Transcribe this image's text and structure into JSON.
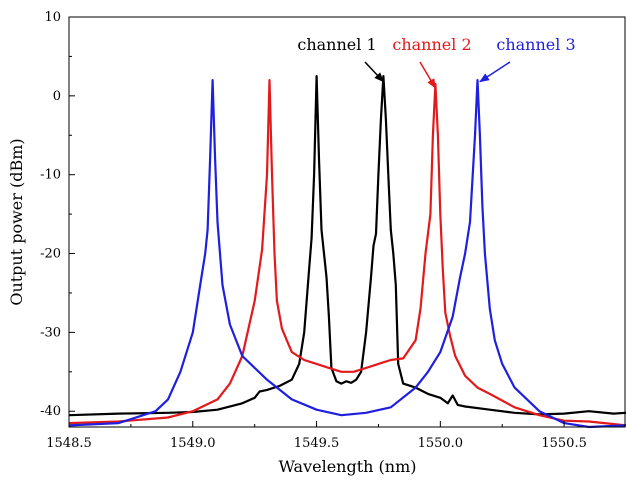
{
  "chart_data": {
    "type": "line",
    "title": "",
    "xlabel": "Wavelength (nm)",
    "ylabel": "Output power (dBm)",
    "xlim": [
      1548.5,
      1550.75
    ],
    "ylim": [
      -42,
      10
    ],
    "x_ticks": [
      1548.5,
      1549.0,
      1549.5,
      1550.0,
      1550.5
    ],
    "x_tick_labels": [
      "1548.5",
      "1549.0",
      "1549.5",
      "1550.0",
      "1550.5"
    ],
    "y_ticks": [
      -40,
      -30,
      -20,
      -10,
      0,
      10
    ],
    "y_tick_labels": [
      "-40",
      "-30",
      "-20",
      "-10",
      "0",
      "10"
    ],
    "grid": false,
    "legend": "none",
    "series": [
      {
        "name": "channel 1",
        "color": "#000000",
        "x": [
          1548.5,
          1548.7,
          1548.9,
          1549.0,
          1549.1,
          1549.2,
          1549.25,
          1549.27,
          1549.3,
          1549.35,
          1549.4,
          1549.43,
          1549.45,
          1549.47,
          1549.48,
          1549.49,
          1549.5,
          1549.51,
          1549.52,
          1549.53,
          1549.54,
          1549.55,
          1549.56,
          1549.58,
          1549.6,
          1549.62,
          1549.64,
          1549.66,
          1549.68,
          1549.7,
          1549.72,
          1549.73,
          1549.74,
          1549.75,
          1549.76,
          1549.77,
          1549.78,
          1549.79,
          1549.8,
          1549.81,
          1549.82,
          1549.83,
          1549.85,
          1549.9,
          1549.95,
          1550.0,
          1550.03,
          1550.05,
          1550.07,
          1550.1,
          1550.2,
          1550.3,
          1550.4,
          1550.5,
          1550.6,
          1550.7,
          1550.75
        ],
        "y": [
          -40.5,
          -40.3,
          -40.2,
          -40.1,
          -39.8,
          -39.0,
          -38.3,
          -37.5,
          -37.3,
          -36.8,
          -36.0,
          -34.0,
          -30.0,
          -22.0,
          -18.0,
          -10.0,
          2.5,
          -8.0,
          -17.0,
          -20.0,
          -23.0,
          -28.0,
          -34.5,
          -36.2,
          -36.5,
          -36.2,
          -36.4,
          -36.0,
          -35.0,
          -30.0,
          -23.0,
          -19.0,
          -17.5,
          -10.0,
          -3.0,
          2.5,
          -3.0,
          -10.0,
          -17.0,
          -20.0,
          -24.0,
          -34.0,
          -36.5,
          -37.0,
          -37.8,
          -38.3,
          -39.0,
          -38.0,
          -39.2,
          -39.4,
          -39.8,
          -40.2,
          -40.4,
          -40.3,
          -40.0,
          -40.3,
          -40.2
        ]
      },
      {
        "name": "channel 2",
        "color": "#e31a1c",
        "x": [
          1548.5,
          1548.7,
          1548.9,
          1549.0,
          1549.1,
          1549.15,
          1549.2,
          1549.25,
          1549.28,
          1549.3,
          1549.31,
          1549.32,
          1549.33,
          1549.34,
          1549.36,
          1549.38,
          1549.4,
          1549.45,
          1549.5,
          1549.55,
          1549.6,
          1549.65,
          1549.7,
          1549.75,
          1549.8,
          1549.85,
          1549.9,
          1549.92,
          1549.94,
          1549.96,
          1549.97,
          1549.98,
          1549.99,
          1550.0,
          1550.01,
          1550.02,
          1550.04,
          1550.06,
          1550.1,
          1550.15,
          1550.2,
          1550.3,
          1550.4,
          1550.5,
          1550.6,
          1550.75
        ],
        "y": [
          -41.5,
          -41.3,
          -40.8,
          -40.0,
          -38.5,
          -36.5,
          -33.0,
          -26.0,
          -19.5,
          -10.0,
          2.0,
          -10.0,
          -20.0,
          -26.0,
          -29.5,
          -31.0,
          -32.5,
          -33.5,
          -34.0,
          -34.5,
          -35.0,
          -35.0,
          -34.5,
          -34.0,
          -33.5,
          -33.3,
          -31.0,
          -27.0,
          -20.0,
          -15.0,
          -5.0,
          1.5,
          -5.0,
          -15.0,
          -22.0,
          -27.5,
          -30.5,
          -33.0,
          -35.5,
          -37.0,
          -37.8,
          -39.5,
          -40.5,
          -41.2,
          -41.3,
          -41.8
        ]
      },
      {
        "name": "channel 3",
        "color": "#1f1fe0",
        "x": [
          1548.5,
          1548.7,
          1548.85,
          1548.9,
          1548.95,
          1549.0,
          1549.03,
          1549.05,
          1549.06,
          1549.07,
          1549.08,
          1549.09,
          1549.1,
          1549.11,
          1549.12,
          1549.15,
          1549.2,
          1549.3,
          1549.4,
          1549.5,
          1549.6,
          1549.7,
          1549.8,
          1549.9,
          1549.95,
          1550.0,
          1550.05,
          1550.08,
          1550.1,
          1550.12,
          1550.14,
          1550.15,
          1550.16,
          1550.17,
          1550.18,
          1550.2,
          1550.22,
          1550.25,
          1550.3,
          1550.4,
          1550.5,
          1550.6,
          1550.75
        ],
        "y": [
          -41.8,
          -41.5,
          -40.0,
          -38.5,
          -35.0,
          -30.0,
          -24.0,
          -20.0,
          -17.0,
          -8.0,
          2.0,
          -8.0,
          -16.0,
          -20.0,
          -24.0,
          -29.0,
          -33.0,
          -36.0,
          -38.5,
          -39.8,
          -40.5,
          -40.2,
          -39.5,
          -37.0,
          -35.0,
          -32.5,
          -28.0,
          -23.0,
          -20.0,
          -16.0,
          -5.0,
          2.0,
          -5.0,
          -14.0,
          -20.0,
          -27.0,
          -31.0,
          -34.0,
          -37.0,
          -40.0,
          -41.5,
          -42.0,
          -41.8
        ]
      }
    ],
    "annotations": [
      {
        "text": "channel 1",
        "color": "#000000",
        "arrow_to": [
          1549.77,
          1.8
        ]
      },
      {
        "text": "channel 2",
        "color": "#e31a1c",
        "arrow_to": [
          1549.98,
          1.0
        ]
      },
      {
        "text": "channel 3",
        "color": "#1f1fe0",
        "arrow_to": [
          1550.16,
          1.8
        ]
      }
    ]
  }
}
